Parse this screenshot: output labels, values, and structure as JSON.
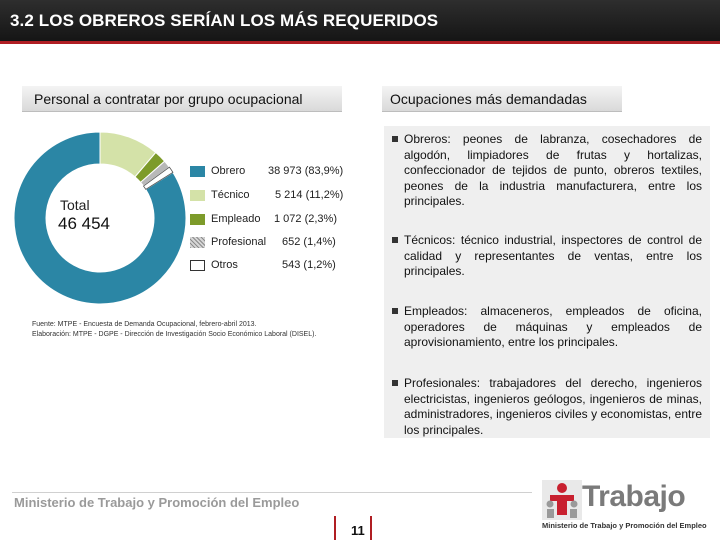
{
  "header": {
    "title": "3.2 LOS OBREROS SERÍAN LOS MÁS REQUERIDOS"
  },
  "left_panel": {
    "heading": "Personal a contratar por grupo ocupacional",
    "total_label": "Total",
    "total_value": "46 454",
    "legend": [
      {
        "name": "Obrero",
        "value": "38 973 (83,9%)",
        "color": "#2b86a5"
      },
      {
        "name": "Técnico",
        "value": "5 214 (11,2%)",
        "color": "#d4e2a8"
      },
      {
        "name": "Empleado",
        "value": "1 072 (2,3%)",
        "color": "#7d9b2a"
      },
      {
        "name": "Profesional",
        "value": "652 (1,4%)",
        "color": "#b8b8b8"
      },
      {
        "name": "Otros",
        "value": "543 (1,2%)",
        "color": "#ffffff"
      }
    ],
    "source_lines": [
      "Fuente: MTPE - Encuesta de Demanda Ocupacional, febrero-abril 2013.",
      "Elaboración: MTPE - DGPE - Dirección de Investigación Socio Económico Laboral (DISEL)."
    ]
  },
  "chart_data": {
    "type": "pie",
    "total": 46454,
    "categories": [
      "Obrero",
      "Técnico",
      "Empleado",
      "Profesional",
      "Otros"
    ],
    "values": [
      38973,
      5214,
      1072,
      652,
      543
    ],
    "percentages": [
      83.9,
      11.2,
      2.3,
      1.4,
      1.2
    ],
    "colors": [
      "#2b86a5",
      "#d4e2a8",
      "#7d9b2a",
      "#b8b8b8",
      "#ffffff"
    ]
  },
  "right_panel": {
    "heading": "Ocupaciones más demandadas",
    "items": [
      "Obreros: peones de labranza, cosechadores de algodón, limpiadores de frutas y hortalizas, confeccionador de tejidos de punto, obreros textiles, peones de la industria manufacturera, entre los principales.",
      "Técnicos: técnico industrial, inspectores de control de calidad y representantes de ventas, entre los principales.",
      "Empleados: almaceneros, empleados de oficina, operadores de máquinas y empleados de aprovisionamiento, entre los principales.",
      "Profesionales: trabajadores del derecho, ingenieros electricistas, ingenieros geólogos, ingenieros de minas, administradores, ingenieros civiles y economistas, entre los principales."
    ]
  },
  "footer": {
    "ministry": "Ministerio de Trabajo y Promoción del Empleo",
    "page_number": "11",
    "logo_word": "Trabajo",
    "logo_sub": "Ministerio de Trabajo y Promoción del Empleo"
  }
}
